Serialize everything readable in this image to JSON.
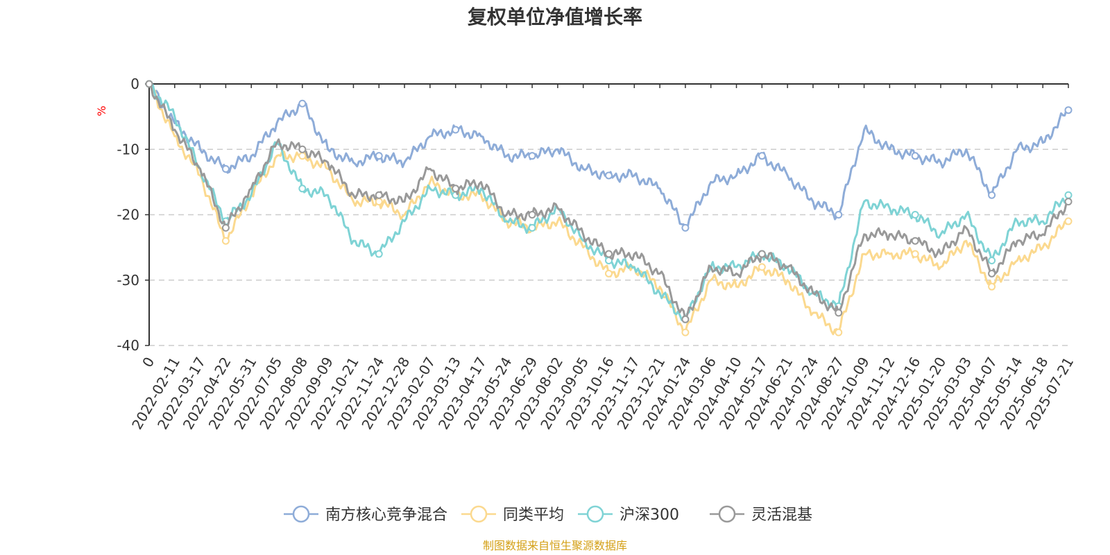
{
  "chart_data": {
    "type": "line",
    "title": "复权单位净值增长率",
    "ylabel": "%",
    "ylim": [
      -40,
      0
    ],
    "yticks": [
      0,
      -10,
      -20,
      -30,
      -40
    ],
    "grid": "horizontal dashed",
    "legend_position": "bottom",
    "x_ticks": [
      "0",
      "2022-02-11",
      "2022-03-17",
      "2022-04-22",
      "2022-05-31",
      "2022-07-05",
      "2022-08-08",
      "2022-09-09",
      "2022-10-21",
      "2022-11-24",
      "2022-12-28",
      "2023-02-07",
      "2023-03-13",
      "2023-04-17",
      "2023-05-24",
      "2023-06-29",
      "2023-08-02",
      "2023-09-05",
      "2023-10-16",
      "2023-11-17",
      "2023-12-21",
      "2024-01-24",
      "2024-03-06",
      "2024-04-10",
      "2024-05-17",
      "2024-06-21",
      "2024-07-24",
      "2024-08-27",
      "2024-10-09",
      "2024-11-12",
      "2024-12-16",
      "2025-01-20",
      "2025-03-03",
      "2025-04-07",
      "2025-05-14",
      "2025-06-18",
      "2025-07-21"
    ],
    "series": [
      {
        "name": "南方核心竞争混合",
        "color": "#8eacd8",
        "values": [
          0,
          -6,
          -10,
          -13,
          -11,
          -6,
          -3,
          -10,
          -12,
          -11,
          -12,
          -8,
          -7,
          -8,
          -11,
          -11,
          -10,
          -13,
          -14,
          -14,
          -16,
          -22,
          -15,
          -14,
          -11,
          -14,
          -18,
          -20,
          -7,
          -10,
          -11,
          -12,
          -10,
          -17,
          -10,
          -9,
          -4
        ]
      },
      {
        "name": "同类平均",
        "color": "#fbd98f",
        "values": [
          0,
          -8,
          -14,
          -24,
          -17,
          -11,
          -11,
          -13,
          -18,
          -18,
          -20,
          -15,
          -17,
          -17,
          -21,
          -22,
          -21,
          -25,
          -29,
          -28,
          -31,
          -38,
          -30,
          -31,
          -28,
          -30,
          -35,
          -38,
          -26,
          -26,
          -26,
          -28,
          -24,
          -31,
          -27,
          -25,
          -21
        ]
      },
      {
        "name": "沪深300",
        "color": "#7fd3d5",
        "values": [
          0,
          -5,
          -13,
          -21,
          -17,
          -9,
          -16,
          -17,
          -24,
          -26,
          -21,
          -16,
          -17,
          -16,
          -21,
          -22,
          -19,
          -24,
          -27,
          -28,
          -32,
          -36,
          -28,
          -28,
          -26,
          -28,
          -32,
          -34,
          -18,
          -19,
          -20,
          -23,
          -20,
          -27,
          -21,
          -21,
          -17
        ]
      },
      {
        "name": "灵活混基",
        "color": "#999999",
        "values": [
          0,
          -7,
          -13,
          -22,
          -16,
          -9,
          -10,
          -12,
          -17,
          -17,
          -18,
          -13,
          -16,
          -15,
          -20,
          -20,
          -19,
          -23,
          -26,
          -26,
          -29,
          -36,
          -28,
          -29,
          -26,
          -28,
          -32,
          -35,
          -23,
          -23,
          -24,
          -26,
          -22,
          -29,
          -24,
          -23,
          -18
        ]
      }
    ]
  },
  "source_text": "制图数据来自恒生聚源数据库",
  "source_color": "#d4a017",
  "unit_color": "#ff0000"
}
